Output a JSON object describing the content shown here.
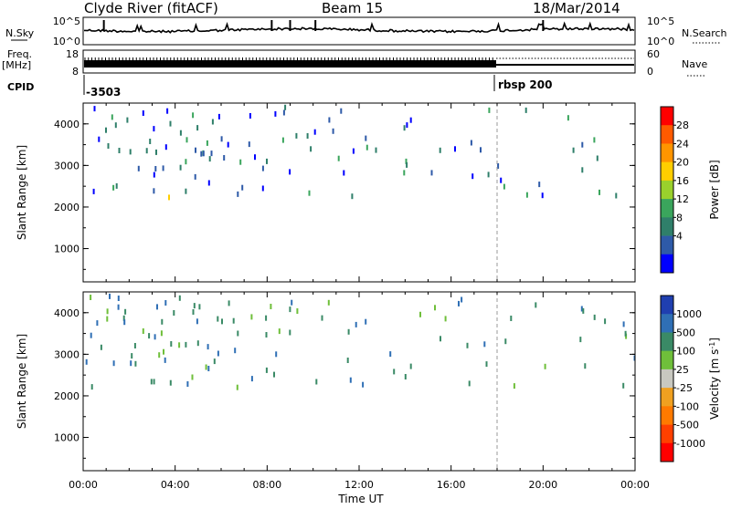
{
  "header": {
    "title": "Clyde River (fitACF)",
    "beam": "Beam 15",
    "date": "18/Mar/2014"
  },
  "top_panels": {
    "nsky_label": "N.Sky",
    "nsky_ticks": [
      "10^5",
      "10^0"
    ],
    "nsearch_label": "N.Search",
    "nsearch_ticks": [
      "10^5",
      "10^0"
    ],
    "freq_label": "Freq.",
    "freq_unit": "[MHz]",
    "freq_ticks": [
      "18",
      "8"
    ],
    "nave_label": "Nave",
    "nave_ticks": [
      "60",
      "0"
    ],
    "cpid_label": "CPID",
    "cpid_segments": [
      {
        "start_hour": 0,
        "label": "-3503"
      },
      {
        "start_hour": 18,
        "label": "rbsp 200"
      }
    ]
  },
  "chart_data": [
    {
      "type": "heatmap",
      "name": "power-panel",
      "ylabel": "Slant Range [km]",
      "xlim": [
        0,
        24
      ],
      "ylim": [
        200,
        4500
      ],
      "yticks": [
        1000,
        2000,
        3000,
        4000
      ],
      "colorbar": {
        "label": "Power [dB]",
        "ticks": [
          "28",
          "24",
          "20",
          "16",
          "12",
          "8",
          "4"
        ],
        "colors": [
          "#ff0000",
          "#ff5a00",
          "#ff9500",
          "#ffce00",
          "#9ad12c",
          "#3aa55c",
          "#2f7f6a",
          "#2e5aa8",
          "#0000ff"
        ]
      }
    },
    {
      "type": "heatmap",
      "name": "velocity-panel",
      "ylabel": "Slant Range [km]",
      "xlabel": "Time UT",
      "xlim": [
        0,
        24
      ],
      "ylim": [
        200,
        4500
      ],
      "yticks": [
        1000,
        2000,
        3000,
        4000
      ],
      "xticks": [
        "00:00",
        "04:00",
        "08:00",
        "12:00",
        "16:00",
        "20:00",
        "00:00"
      ],
      "colorbar": {
        "label": "Velocity [m s",
        "label_sup": "-1",
        "label_end": "]",
        "ticks": [
          "1000",
          "500",
          "100",
          "25",
          "-25",
          "-100",
          "-500",
          "-1000"
        ],
        "colors": [
          "#1f3fb0",
          "#2f6fb5",
          "#3a8a66",
          "#6fbf3a",
          "#c8c8c0",
          "#f0a020",
          "#ff7a00",
          "#ff4000",
          "#ff0000"
        ]
      }
    }
  ]
}
